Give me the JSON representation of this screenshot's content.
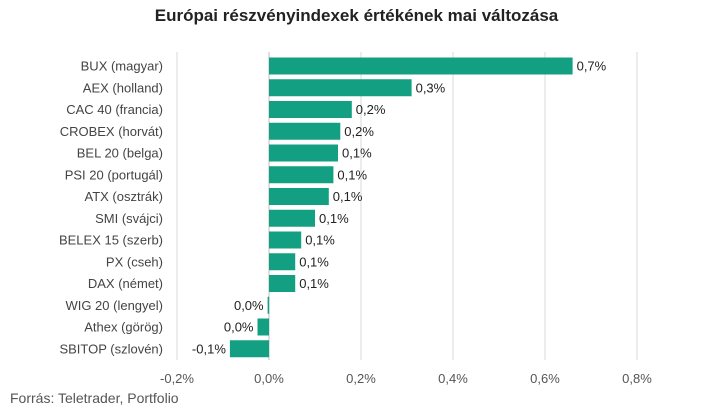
{
  "title": "Európai részvényindexek értékének mai változása",
  "source": "Forrás: Teletrader, Portfolio",
  "colors": {
    "bar": "#13a082",
    "grid": "#d9d9d9",
    "zero": "#bfbfbf"
  },
  "chart_data": {
    "type": "bar",
    "orientation": "horizontal",
    "title": "Európai részvényindexek értékének mai változása",
    "categories": [
      "BUX (magyar)",
      "AEX (holland)",
      "CAC 40 (francia)",
      "CROBEX (horvát)",
      "BEL 20 (belga)",
      "PSI 20 (portugál)",
      "ATX (osztrák)",
      "SMI (svájci)",
      "BELEX 15 (szerb)",
      "PX (cseh)",
      "DAX (német)",
      "WIG 20 (lengyel)",
      "Athex (görög)",
      "SBITOP (szlovén)"
    ],
    "values": [
      0.66,
      0.31,
      0.18,
      0.155,
      0.15,
      0.14,
      0.13,
      0.1,
      0.07,
      0.057,
      0.057,
      -0.003,
      -0.025,
      -0.085
    ],
    "value_labels": [
      "0,7%",
      "0,3%",
      "0,2%",
      "0,2%",
      "0,1%",
      "0,1%",
      "0,1%",
      "0,1%",
      "0,1%",
      "0,1%",
      "0,1%",
      "0,0%",
      "0,0%",
      "-0,1%"
    ],
    "xlim": [
      -0.2,
      0.8
    ],
    "xticks": [
      -0.2,
      0,
      0.2,
      0.4,
      0.6,
      0.8
    ],
    "xtick_labels": [
      "-0,2%",
      "0,0%",
      "0,2%",
      "0,4%",
      "0,6%",
      "0,8%"
    ],
    "grid": true
  }
}
